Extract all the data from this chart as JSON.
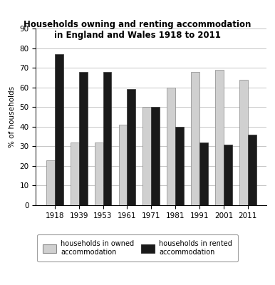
{
  "title_line1": "Households owning and renting accommodation",
  "title_line2": "in England and Wales 1918 to 2011",
  "years": [
    "1918",
    "1939",
    "1953",
    "1961",
    "1971",
    "1981",
    "1991",
    "2001",
    "2011"
  ],
  "owned": [
    23,
    32,
    32,
    41,
    50,
    60,
    68,
    69,
    64
  ],
  "rented": [
    77,
    68,
    68,
    59,
    50,
    40,
    32,
    31,
    36
  ],
  "owned_color": "#d0d0d0",
  "rented_color": "#1a1a1a",
  "ylabel": "% of households",
  "ylim": [
    0,
    90
  ],
  "yticks": [
    0,
    10,
    20,
    30,
    40,
    50,
    60,
    70,
    80,
    90
  ],
  "legend_owned": "households in owned\naccommodation",
  "legend_rented": "households in rented\naccommodation",
  "bar_width": 0.35,
  "title_fontsize": 8.5,
  "axis_fontsize": 7.5,
  "legend_fontsize": 7,
  "background_color": "#ffffff",
  "grid_color": "#bbbbbb"
}
